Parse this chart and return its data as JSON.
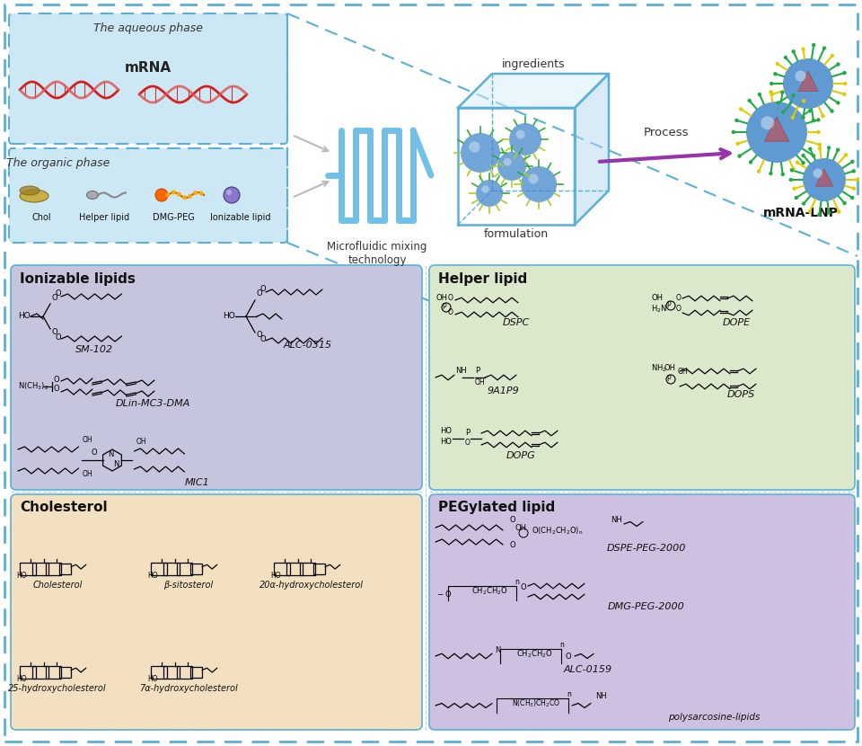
{
  "background_color": "#ffffff",
  "top_panel": {
    "aqueous_box_color": "#cde8f5",
    "organic_box_color": "#cde8f5",
    "box_border_color": "#5ab0d8",
    "aqueous_label": "The aqueous phase",
    "organic_label": "The organic phase",
    "mrna_label": "mRNA",
    "mixing_label": "Microfluidic mixing\ntechnology",
    "ingredients_label": "ingredients",
    "formulation_label": "formulation",
    "process_label": "Process",
    "product_label": "mRNA-LNP",
    "organic_components": [
      "Chol",
      "Helper lipid",
      "DMG-PEG",
      "Ionizable lipid"
    ]
  },
  "bottom_panel": {
    "outer_border_color": "#5ab0d8",
    "ionizable_bg": "#c5c5de",
    "helper_bg": "#dce8cc",
    "cholesterol_bg": "#f2e0c0",
    "pegylated_bg": "#cdc0e0",
    "ionizable_label": "Ionizable lipids",
    "helper_label": "Helper lipid",
    "cholesterol_label": "Cholesterol",
    "pegylated_label": "PEGylated lipid",
    "ionizable_compounds": [
      "SM-102",
      "ALC-0315",
      "DLin-MC3-DMA",
      "MIC1"
    ],
    "helper_compounds": [
      "DSPC",
      "DOPE",
      "9A1P9",
      "DOPS",
      "DOPG"
    ],
    "cholesterol_compounds": [
      "Cholesterol",
      "β-sitosterol",
      "20α-hydroxycholesterol",
      "25-hydroxycholesterol",
      "7α-hydroxycholesterol"
    ],
    "pegylated_compounds": [
      "DSPE-PEG-2000",
      "DMG-PEG-2000",
      "ALC-0159",
      "polysarcosine-lipids"
    ]
  }
}
